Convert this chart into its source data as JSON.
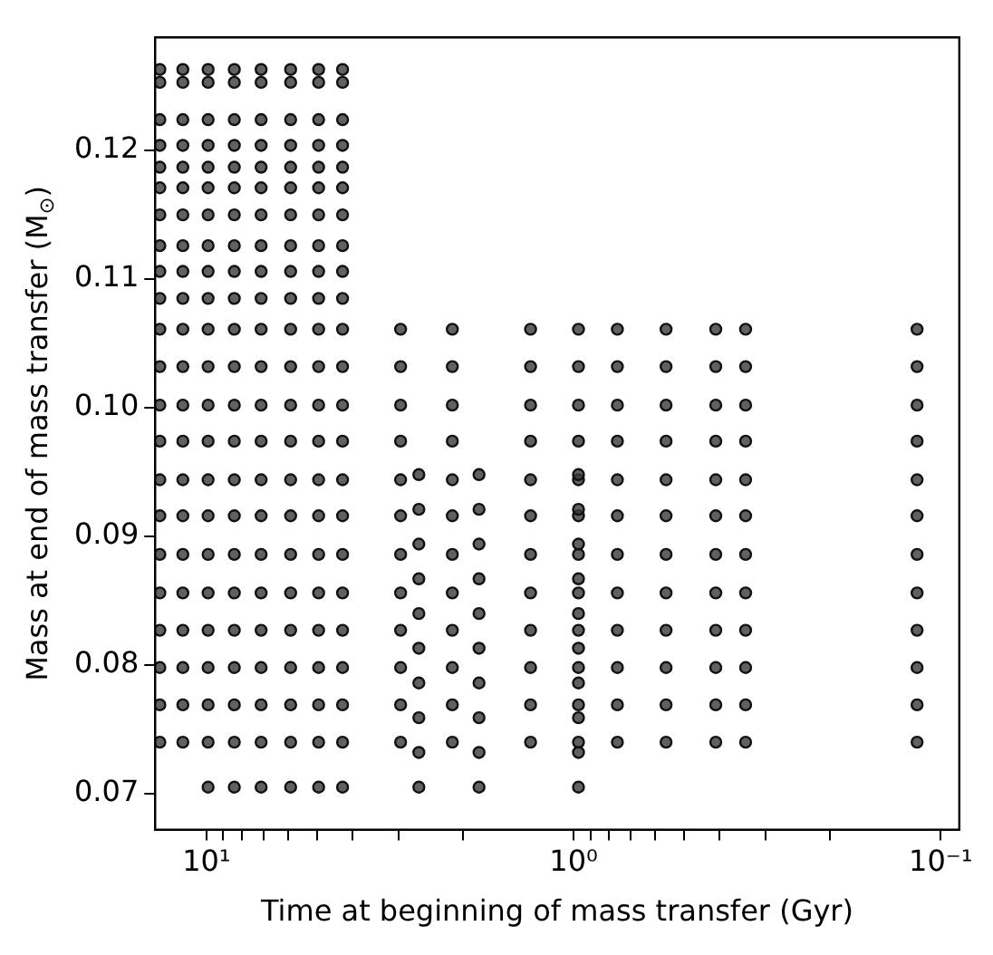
{
  "chart_data": {
    "type": "scatter",
    "xlabel": "Time at beginning of mass transfer (Gyr)",
    "ylabel": "Mass at end of mass transfer (M$_{⊙}$)",
    "log": "x",
    "marker": "circle",
    "grid": false,
    "legend": false,
    "xlim": [
      13.8,
      0.089
    ],
    "ylim": [
      0.0672,
      0.1288
    ],
    "xticks": [
      {
        "value": 10,
        "label": "10¹"
      },
      {
        "value": 9,
        "label": null
      },
      {
        "value": 8,
        "label": null
      },
      {
        "value": 7,
        "label": null
      },
      {
        "value": 6,
        "label": null
      },
      {
        "value": 5,
        "label": null
      },
      {
        "value": 4,
        "label": null
      },
      {
        "value": 3,
        "label": null
      },
      {
        "value": 2,
        "label": null
      },
      {
        "value": 1,
        "label": "10⁰"
      },
      {
        "value": 0.9,
        "label": null
      },
      {
        "value": 0.8,
        "label": null
      },
      {
        "value": 0.7,
        "label": null
      },
      {
        "value": 0.6,
        "label": null
      },
      {
        "value": 0.5,
        "label": null
      },
      {
        "value": 0.4,
        "label": null
      },
      {
        "value": 0.3,
        "label": null
      },
      {
        "value": 0.2,
        "label": null
      },
      {
        "value": 0.1,
        "label": "10⁻¹"
      }
    ],
    "yticks": [
      0.07,
      0.08,
      0.09,
      {
        "value": 0.1,
        "label": "0.10"
      },
      0.11,
      0.12
    ],
    "series": [
      {
        "color": "#3a3a3a",
        "x": [
          13.4,
          13.4,
          13.4,
          13.4,
          13.4,
          13.4,
          13.4,
          13.4,
          13.4,
          13.4,
          13.4,
          13.4,
          13.4,
          13.4,
          13.4,
          13.4,
          13.4,
          13.4,
          13.4,
          13.4,
          13.4,
          13.4,
          11.6,
          11.6,
          11.6,
          11.6,
          11.6,
          11.6,
          11.6,
          11.6,
          11.6,
          11.6,
          11.6,
          11.6,
          11.6,
          11.6,
          11.6,
          11.6,
          11.6,
          11.6,
          11.6,
          11.6,
          11.6,
          11.6,
          9.9,
          9.9,
          9.9,
          9.9,
          9.9,
          9.9,
          9.9,
          9.9,
          9.9,
          9.9,
          9.9,
          9.9,
          9.9,
          9.9,
          9.9,
          9.9,
          9.9,
          9.9,
          9.9,
          9.9,
          9.9,
          9.9,
          9.9,
          8.4,
          8.4,
          8.4,
          8.4,
          8.4,
          8.4,
          8.4,
          8.4,
          8.4,
          8.4,
          8.4,
          8.4,
          8.4,
          8.4,
          8.4,
          8.4,
          8.4,
          8.4,
          8.4,
          8.4,
          8.4,
          8.4,
          8.4,
          7.1,
          7.1,
          7.1,
          7.1,
          7.1,
          7.1,
          7.1,
          7.1,
          7.1,
          7.1,
          7.1,
          7.1,
          7.1,
          7.1,
          7.1,
          7.1,
          7.1,
          7.1,
          7.1,
          7.1,
          7.1,
          7.1,
          7.1,
          5.9,
          5.9,
          5.9,
          5.9,
          5.9,
          5.9,
          5.9,
          5.9,
          5.9,
          5.9,
          5.9,
          5.9,
          5.9,
          5.9,
          5.9,
          5.9,
          5.9,
          5.9,
          5.9,
          5.9,
          5.9,
          5.9,
          5.9,
          4.95,
          4.95,
          4.95,
          4.95,
          4.95,
          4.95,
          4.95,
          4.95,
          4.95,
          4.95,
          4.95,
          4.95,
          4.95,
          4.95,
          4.95,
          4.95,
          4.95,
          4.95,
          4.95,
          4.95,
          4.95,
          4.95,
          4.95,
          4.26,
          4.26,
          4.26,
          4.26,
          4.26,
          4.26,
          4.26,
          4.26,
          4.26,
          4.26,
          4.26,
          4.26,
          4.26,
          4.26,
          4.26,
          4.26,
          4.26,
          4.26,
          4.26,
          4.26,
          4.26,
          4.26,
          4.26,
          2.96,
          2.96,
          2.96,
          2.96,
          2.96,
          2.96,
          2.96,
          2.96,
          2.96,
          2.96,
          2.96,
          2.96,
          2.14,
          2.14,
          2.14,
          2.14,
          2.14,
          2.14,
          2.14,
          2.14,
          2.14,
          2.14,
          2.14,
          2.14,
          1.31,
          1.31,
          1.31,
          1.31,
          1.31,
          1.31,
          1.31,
          1.31,
          1.31,
          1.31,
          1.31,
          1.31,
          0.97,
          0.97,
          0.97,
          0.97,
          0.97,
          0.97,
          0.97,
          0.97,
          0.97,
          0.97,
          0.97,
          0.97,
          0.76,
          0.76,
          0.76,
          0.76,
          0.76,
          0.76,
          0.76,
          0.76,
          0.76,
          0.76,
          0.76,
          0.76,
          0.56,
          0.56,
          0.56,
          0.56,
          0.56,
          0.56,
          0.56,
          0.56,
          0.56,
          0.56,
          0.56,
          0.56,
          0.41,
          0.41,
          0.41,
          0.41,
          0.41,
          0.41,
          0.41,
          0.41,
          0.41,
          0.41,
          0.41,
          0.41,
          0.34,
          0.34,
          0.34,
          0.34,
          0.34,
          0.34,
          0.34,
          0.34,
          0.34,
          0.34,
          0.34,
          0.34,
          0.116,
          0.116,
          0.116,
          0.116,
          0.116,
          0.116,
          0.116,
          0.116,
          0.116,
          0.116,
          0.116,
          0.116,
          2.64,
          2.64,
          2.64,
          2.64,
          2.64,
          2.64,
          2.64,
          2.64,
          2.64,
          2.64,
          1.81,
          1.81,
          1.81,
          1.81,
          1.81,
          1.81,
          1.81,
          1.81,
          1.81,
          1.81,
          0.97,
          0.97,
          0.97,
          0.97,
          0.97,
          0.97,
          0.97,
          0.97,
          0.97,
          0.97
        ],
        "values": [
          0.1263,
          0.1253,
          0.1224,
          0.1204,
          0.1187,
          0.1171,
          0.115,
          0.1126,
          0.1106,
          0.1085,
          0.1061,
          0.1032,
          0.1002,
          0.0974,
          0.0944,
          0.0916,
          0.0886,
          0.0856,
          0.0827,
          0.0798,
          0.0769,
          0.074,
          0.1263,
          0.1253,
          0.1224,
          0.1204,
          0.1187,
          0.1171,
          0.115,
          0.1126,
          0.1106,
          0.1085,
          0.1061,
          0.1032,
          0.1002,
          0.0974,
          0.0944,
          0.0916,
          0.0886,
          0.0856,
          0.0827,
          0.0798,
          0.0769,
          0.074,
          0.1263,
          0.1253,
          0.1224,
          0.1204,
          0.1187,
          0.1171,
          0.115,
          0.1126,
          0.1106,
          0.1085,
          0.1061,
          0.1032,
          0.1002,
          0.0974,
          0.0944,
          0.0916,
          0.0886,
          0.0856,
          0.0827,
          0.0798,
          0.0769,
          0.074,
          0.0705,
          0.1263,
          0.1253,
          0.1224,
          0.1204,
          0.1187,
          0.1171,
          0.115,
          0.1126,
          0.1106,
          0.1085,
          0.1061,
          0.1032,
          0.1002,
          0.0974,
          0.0944,
          0.0916,
          0.0886,
          0.0856,
          0.0827,
          0.0798,
          0.0769,
          0.074,
          0.0705,
          0.1263,
          0.1253,
          0.1224,
          0.1204,
          0.1187,
          0.1171,
          0.115,
          0.1126,
          0.1106,
          0.1085,
          0.1061,
          0.1032,
          0.1002,
          0.0974,
          0.0944,
          0.0916,
          0.0886,
          0.0856,
          0.0827,
          0.0798,
          0.0769,
          0.074,
          0.0705,
          0.1263,
          0.1253,
          0.1224,
          0.1204,
          0.1187,
          0.1171,
          0.115,
          0.1126,
          0.1106,
          0.1085,
          0.1061,
          0.1032,
          0.1002,
          0.0974,
          0.0944,
          0.0916,
          0.0886,
          0.0856,
          0.0827,
          0.0798,
          0.0769,
          0.074,
          0.0705,
          0.1263,
          0.1253,
          0.1224,
          0.1204,
          0.1187,
          0.1171,
          0.115,
          0.1126,
          0.1106,
          0.1085,
          0.1061,
          0.1032,
          0.1002,
          0.0974,
          0.0944,
          0.0916,
          0.0886,
          0.0856,
          0.0827,
          0.0798,
          0.0769,
          0.074,
          0.0705,
          0.1263,
          0.1253,
          0.1224,
          0.1204,
          0.1187,
          0.1171,
          0.115,
          0.1126,
          0.1106,
          0.1085,
          0.1061,
          0.1032,
          0.1002,
          0.0974,
          0.0944,
          0.0916,
          0.0886,
          0.0856,
          0.0827,
          0.0798,
          0.0769,
          0.074,
          0.0705,
          0.1061,
          0.1032,
          0.1002,
          0.0974,
          0.0944,
          0.0916,
          0.0886,
          0.0856,
          0.0827,
          0.0798,
          0.0769,
          0.074,
          0.1061,
          0.1032,
          0.1002,
          0.0974,
          0.0944,
          0.0916,
          0.0886,
          0.0856,
          0.0827,
          0.0798,
          0.0769,
          0.074,
          0.1061,
          0.1032,
          0.1002,
          0.0974,
          0.0944,
          0.0916,
          0.0886,
          0.0856,
          0.0827,
          0.0798,
          0.0769,
          0.074,
          0.1061,
          0.1032,
          0.1002,
          0.0974,
          0.0944,
          0.0916,
          0.0886,
          0.0856,
          0.0827,
          0.0798,
          0.0769,
          0.074,
          0.1061,
          0.1032,
          0.1002,
          0.0974,
          0.0944,
          0.0916,
          0.0886,
          0.0856,
          0.0827,
          0.0798,
          0.0769,
          0.074,
          0.1061,
          0.1032,
          0.1002,
          0.0974,
          0.0944,
          0.0916,
          0.0886,
          0.0856,
          0.0827,
          0.0798,
          0.0769,
          0.074,
          0.1061,
          0.1032,
          0.1002,
          0.0974,
          0.0944,
          0.0916,
          0.0886,
          0.0856,
          0.0827,
          0.0798,
          0.0769,
          0.074,
          0.1061,
          0.1032,
          0.1002,
          0.0974,
          0.0944,
          0.0916,
          0.0886,
          0.0856,
          0.0827,
          0.0798,
          0.0769,
          0.074,
          0.1061,
          0.1032,
          0.1002,
          0.0974,
          0.0944,
          0.0916,
          0.0886,
          0.0856,
          0.0827,
          0.0798,
          0.0769,
          0.074,
          0.0948,
          0.0921,
          0.0894,
          0.0867,
          0.084,
          0.0813,
          0.0786,
          0.0759,
          0.0732,
          0.0705,
          0.0948,
          0.0921,
          0.0894,
          0.0867,
          0.084,
          0.0813,
          0.0786,
          0.0759,
          0.0732,
          0.0705,
          0.0948,
          0.0921,
          0.0894,
          0.0867,
          0.084,
          0.0813,
          0.0786,
          0.0759,
          0.0732,
          0.0705
        ]
      }
    ]
  }
}
